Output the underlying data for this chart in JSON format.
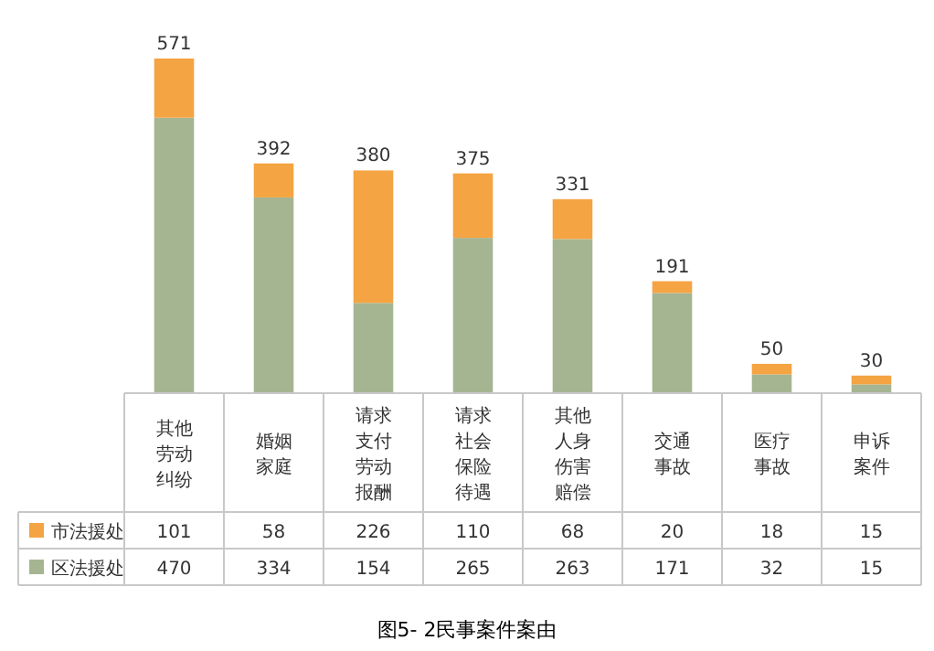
{
  "chart_data": {
    "type": "bar",
    "stacked": true,
    "title": "图5- 2民事案件案由",
    "data_labels": true,
    "legend": "bottom",
    "categories": [
      "其他劳动纠纷",
      "婚姻家庭",
      "请求支付劳动报酬",
      "请求社会保险待遇",
      "其他人身伤害赔偿",
      "交通事故",
      "医疗事故",
      "申诉案件"
    ],
    "series": [
      {
        "name": "区法援处",
        "color": "#a5b592",
        "values": [
          470,
          334,
          154,
          265,
          263,
          171,
          32,
          15
        ]
      },
      {
        "name": "市法援处",
        "color": "#f4a442",
        "values": [
          101,
          58,
          226,
          110,
          68,
          20,
          18,
          15
        ]
      }
    ],
    "totals": [
      "571",
      "392",
      "380",
      "375",
      "331",
      "191",
      "50",
      "30"
    ]
  }
}
